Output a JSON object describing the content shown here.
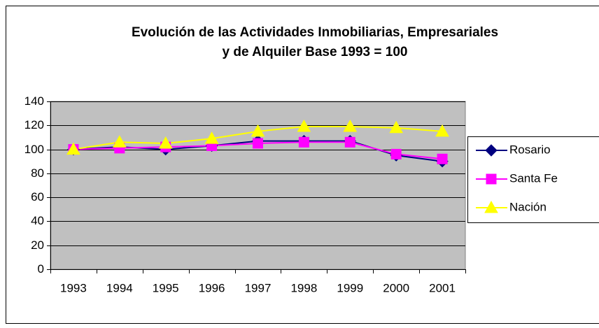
{
  "chart_data": {
    "type": "line",
    "title": [
      "Evolución de las Actividades Inmobiliarias, Empresariales",
      "y de Alquiler Base 1993 = 100"
    ],
    "categories": [
      "1993",
      "1994",
      "1995",
      "1996",
      "1997",
      "1998",
      "1999",
      "2000",
      "2001"
    ],
    "series": [
      {
        "name": "Rosario",
        "color": "#000080",
        "marker": "diamond",
        "values": [
          100,
          102,
          100,
          103,
          107,
          107,
          107,
          95,
          90
        ]
      },
      {
        "name": "Santa Fe",
        "color": "#ff00ff",
        "marker": "square",
        "values": [
          100,
          101,
          102,
          103,
          105,
          106,
          106,
          96,
          92
        ]
      },
      {
        "name": "Nación",
        "color": "#ffff00",
        "marker": "triangle",
        "values": [
          100,
          106,
          105,
          109,
          115,
          119,
          119,
          118,
          115
        ]
      }
    ],
    "ylim": [
      0,
      140
    ],
    "yticks": [
      0,
      20,
      40,
      60,
      80,
      100,
      120,
      140
    ],
    "grid": true,
    "plot_background": "#c0c0c0",
    "legend": "right"
  }
}
